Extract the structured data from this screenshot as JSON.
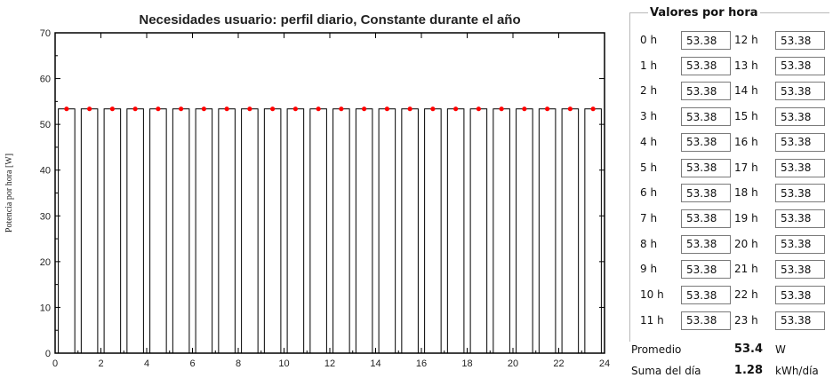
{
  "chart_data": {
    "type": "bar",
    "title": "Necesidades usuario: perfil diario, Constante durante el año",
    "ylabel": "Potencia por hora [W]",
    "xlabel": "",
    "x_ticks": [
      "0",
      "2",
      "4",
      "6",
      "8",
      "10",
      "12",
      "14",
      "16",
      "18",
      "20",
      "22",
      "24"
    ],
    "y_ticks": [
      "0",
      "10",
      "20",
      "30",
      "40",
      "50",
      "60",
      "70"
    ],
    "xlim": [
      0,
      24
    ],
    "ylim": [
      0,
      70
    ],
    "categories": [
      "0",
      "1",
      "2",
      "3",
      "4",
      "5",
      "6",
      "7",
      "8",
      "9",
      "10",
      "11",
      "12",
      "13",
      "14",
      "15",
      "16",
      "17",
      "18",
      "19",
      "20",
      "21",
      "22",
      "23"
    ],
    "values": [
      53.38,
      53.38,
      53.38,
      53.38,
      53.38,
      53.38,
      53.38,
      53.38,
      53.38,
      53.38,
      53.38,
      53.38,
      53.38,
      53.38,
      53.38,
      53.38,
      53.38,
      53.38,
      53.38,
      53.38,
      53.38,
      53.38,
      53.38,
      53.38
    ],
    "bar_color": "#ffffff",
    "marker_color": "#ff0000",
    "grid": false
  },
  "panel": {
    "group_title": "Valores por hora",
    "hours": [
      {
        "label": "0 h",
        "value": "53.38"
      },
      {
        "label": "1 h",
        "value": "53.38"
      },
      {
        "label": "2 h",
        "value": "53.38"
      },
      {
        "label": "3 h",
        "value": "53.38"
      },
      {
        "label": "4 h",
        "value": "53.38"
      },
      {
        "label": "5 h",
        "value": "53.38"
      },
      {
        "label": "6 h",
        "value": "53.38"
      },
      {
        "label": "7 h",
        "value": "53.38"
      },
      {
        "label": "8 h",
        "value": "53.38"
      },
      {
        "label": "9 h",
        "value": "53.38"
      },
      {
        "label": "10 h",
        "value": "53.38"
      },
      {
        "label": "11 h",
        "value": "53.38"
      },
      {
        "label": "12 h",
        "value": "53.38"
      },
      {
        "label": "13 h",
        "value": "53.38"
      },
      {
        "label": "14 h",
        "value": "53.38"
      },
      {
        "label": "15 h",
        "value": "53.38"
      },
      {
        "label": "16 h",
        "value": "53.38"
      },
      {
        "label": "17 h",
        "value": "53.38"
      },
      {
        "label": "18 h",
        "value": "53.38"
      },
      {
        "label": "19 h",
        "value": "53.38"
      },
      {
        "label": "20 h",
        "value": "53.38"
      },
      {
        "label": "21 h",
        "value": "53.38"
      },
      {
        "label": "22 h",
        "value": "53.38"
      },
      {
        "label": "23 h",
        "value": "53.38"
      }
    ],
    "average_label": "Promedio",
    "average_value": "53.4",
    "average_unit": "W",
    "daily_sum_label": "Suma del día",
    "daily_sum_value": "1.28",
    "daily_sum_unit": "kWh/día"
  }
}
